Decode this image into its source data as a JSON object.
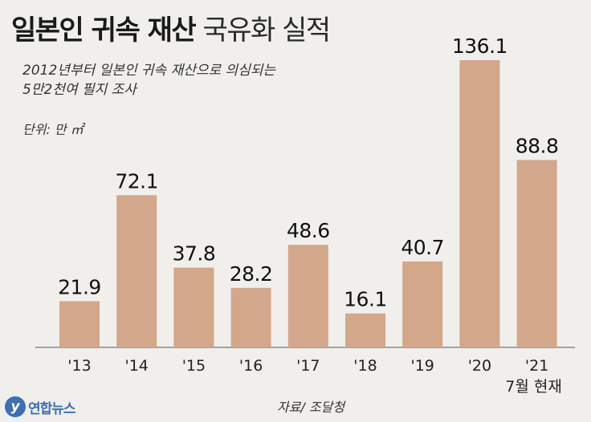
{
  "header": {
    "title_bold": "일본인 귀속 재산",
    "title_light": "국유화 실적",
    "subtitle_line1": "2012년부터 일본인 귀속 재산으로 의심되는",
    "subtitle_line2": "5만2천여 필지 조사",
    "unit": "단위: 만 ㎡"
  },
  "chart_data": {
    "type": "bar",
    "categories": [
      "'13",
      "'14",
      "'15",
      "'16",
      "'17",
      "'18",
      "'19",
      "'20",
      "'21"
    ],
    "values": [
      21.9,
      72.1,
      37.8,
      28.2,
      48.6,
      16.1,
      40.7,
      136.1,
      88.8
    ],
    "value_labels": [
      "21.9",
      "72.1",
      "37.8",
      "28.2",
      "48.6",
      "16.1",
      "40.7",
      "136.1",
      "88.8"
    ],
    "ylim": [
      0,
      136.1
    ],
    "bar_color": "#d2a78a",
    "grid": false,
    "last_category_note": "7월 현재"
  },
  "footer": {
    "source": "자료/ 조달청",
    "logo_mark": "y",
    "logo_text": "연합뉴스"
  }
}
